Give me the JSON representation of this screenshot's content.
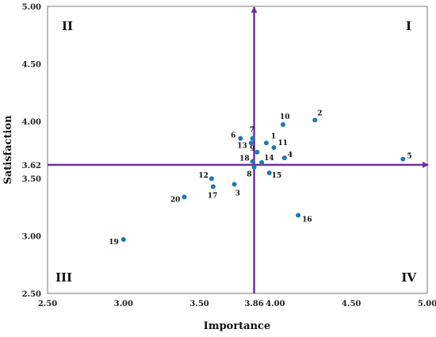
{
  "chart_data": {
    "type": "scatter",
    "xlabel": "Importance",
    "ylabel": "Satisfaction",
    "xlim": [
      2.5,
      5.0
    ],
    "ylim": [
      2.5,
      5.0
    ],
    "x_ticks": [
      "2.50",
      "3.00",
      "3.50",
      "3.86",
      "4.00",
      "4.50",
      "5.00"
    ],
    "x_tick_values": [
      2.5,
      3.0,
      3.5,
      3.86,
      4.0,
      4.5,
      5.0
    ],
    "y_ticks": [
      "2.50",
      "3.00",
      "3.50",
      "3.62",
      "4.00",
      "4.50",
      "5.00"
    ],
    "y_tick_values": [
      2.5,
      3.0,
      3.5,
      3.62,
      4.0,
      4.5,
      5.0
    ],
    "reference_lines": {
      "x": 3.86,
      "y": 3.62
    },
    "quadrants": {
      "top_right": "I",
      "top_left": "II",
      "bottom_left": "III",
      "bottom_right": "IV"
    },
    "grid": false,
    "colors": {
      "points": "#1f77b4",
      "reference_lines": "#7030a0",
      "frame": "#7a7a7a"
    },
    "points": [
      {
        "label": "1",
        "x": 3.94,
        "y": 3.81
      },
      {
        "label": "2",
        "x": 4.26,
        "y": 4.01
      },
      {
        "label": "3",
        "x": 3.73,
        "y": 3.45
      },
      {
        "label": "4",
        "x": 4.06,
        "y": 3.68
      },
      {
        "label": "5",
        "x": 4.84,
        "y": 3.67
      },
      {
        "label": "6",
        "x": 3.77,
        "y": 3.85
      },
      {
        "label": "7",
        "x": 3.85,
        "y": 3.85
      },
      {
        "label": "8",
        "x": 3.86,
        "y": 3.6
      },
      {
        "label": "9",
        "x": 3.88,
        "y": 3.73
      },
      {
        "label": "10",
        "x": 4.05,
        "y": 3.97
      },
      {
        "label": "11",
        "x": 3.99,
        "y": 3.77
      },
      {
        "label": "12",
        "x": 3.58,
        "y": 3.5
      },
      {
        "label": "13",
        "x": 3.84,
        "y": 3.81
      },
      {
        "label": "14",
        "x": 3.91,
        "y": 3.64
      },
      {
        "label": "15",
        "x": 3.96,
        "y": 3.55
      },
      {
        "label": "16",
        "x": 4.15,
        "y": 3.18
      },
      {
        "label": "17",
        "x": 3.59,
        "y": 3.43
      },
      {
        "label": "18",
        "x": 3.85,
        "y": 3.65
      },
      {
        "label": "19",
        "x": 3.0,
        "y": 2.97
      },
      {
        "label": "20",
        "x": 3.4,
        "y": 3.34
      }
    ]
  }
}
